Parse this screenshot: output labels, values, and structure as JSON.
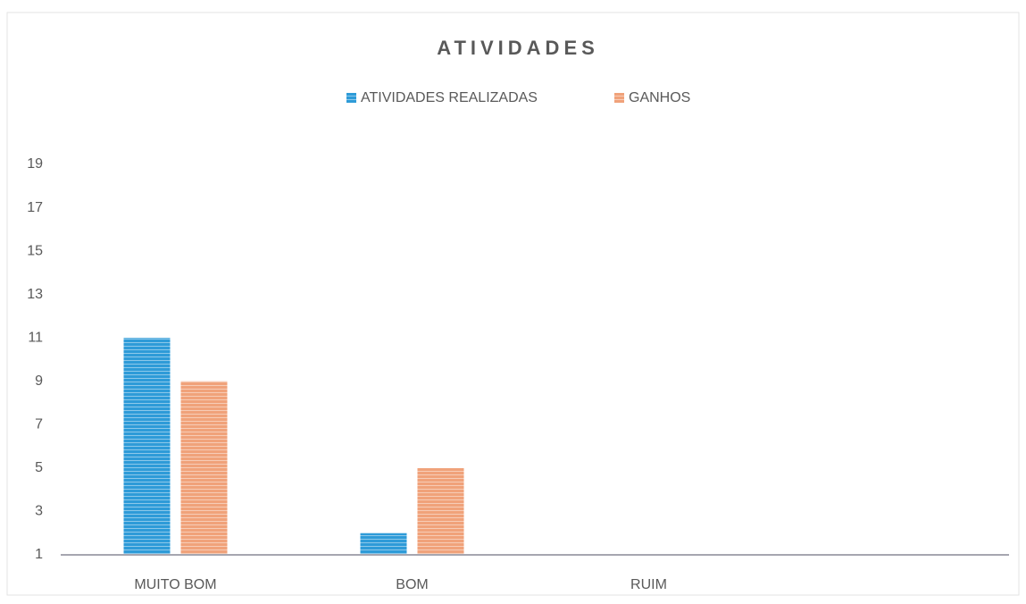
{
  "chart_data": {
    "type": "bar",
    "title": "ATIVIDADES",
    "categories": [
      "MUITO BOM",
      "BOM",
      "RUIM",
      null
    ],
    "series": [
      {
        "name": "ATIVIDADES REALIZADAS",
        "color": "#2e9bd8",
        "values": [
          11,
          2,
          null,
          null
        ]
      },
      {
        "name": "GANHOS",
        "color": "#f0a27a",
        "values": [
          9,
          5,
          null,
          null
        ]
      }
    ],
    "ylim": [
      1,
      19
    ],
    "yticks": [
      1,
      3,
      5,
      7,
      9,
      11,
      13,
      15,
      17,
      19
    ],
    "grid": false,
    "legend": "top"
  }
}
